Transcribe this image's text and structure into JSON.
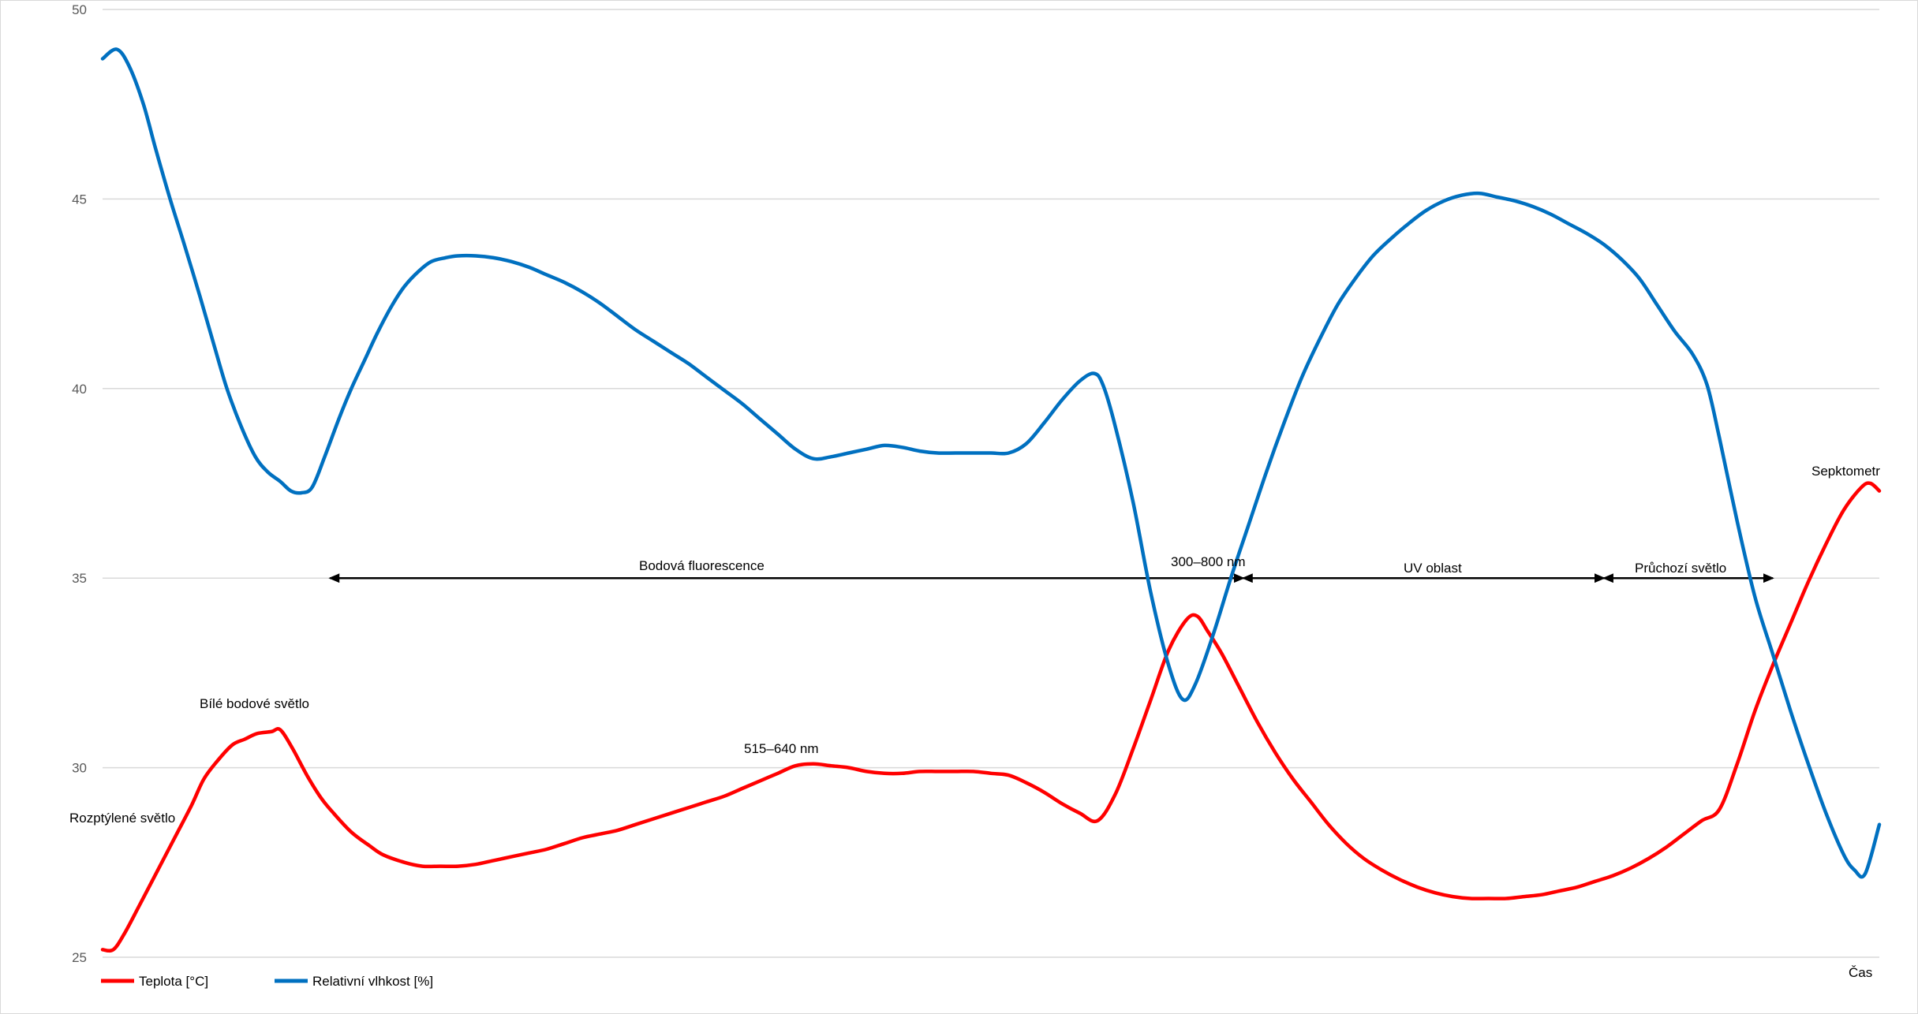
{
  "chart_data": {
    "type": "line",
    "title": "",
    "xlabel": "Čas",
    "ylabel": "",
    "ylim": [
      25,
      50
    ],
    "yticks": [
      "25",
      "30",
      "35",
      "40",
      "45",
      "50"
    ],
    "grid": true,
    "legend_position": "bottom-left",
    "x_range": [
      0,
      100
    ],
    "series": [
      {
        "name": "Teplota [°C]",
        "color": "#ff0000",
        "points": [
          [
            0,
            25.2
          ],
          [
            0.6,
            25.2
          ],
          [
            1.2,
            25.6
          ],
          [
            2,
            26.3
          ],
          [
            3,
            27.2
          ],
          [
            4,
            28.1
          ],
          [
            5,
            29.0
          ],
          [
            5.7,
            29.7
          ],
          [
            6.5,
            30.2
          ],
          [
            7.3,
            30.6
          ],
          [
            8,
            30.75
          ],
          [
            8.7,
            30.9
          ],
          [
            9.5,
            30.95
          ],
          [
            10,
            31.0
          ],
          [
            10.7,
            30.5
          ],
          [
            11.5,
            29.8
          ],
          [
            12.3,
            29.2
          ],
          [
            13,
            28.8
          ],
          [
            14,
            28.3
          ],
          [
            15,
            27.95
          ],
          [
            15.8,
            27.7
          ],
          [
            17,
            27.5
          ],
          [
            18,
            27.4
          ],
          [
            19,
            27.4
          ],
          [
            20,
            27.4
          ],
          [
            21,
            27.45
          ],
          [
            22,
            27.55
          ],
          [
            23,
            27.65
          ],
          [
            24,
            27.75
          ],
          [
            25,
            27.85
          ],
          [
            26,
            28.0
          ],
          [
            27,
            28.15
          ],
          [
            28,
            28.25
          ],
          [
            29,
            28.35
          ],
          [
            30,
            28.5
          ],
          [
            31,
            28.65
          ],
          [
            32,
            28.8
          ],
          [
            33,
            28.95
          ],
          [
            34,
            29.1
          ],
          [
            35,
            29.25
          ],
          [
            36,
            29.45
          ],
          [
            37,
            29.65
          ],
          [
            38,
            29.85
          ],
          [
            39,
            30.05
          ],
          [
            40,
            30.1
          ],
          [
            41,
            30.05
          ],
          [
            42,
            30.0
          ],
          [
            43,
            29.9
          ],
          [
            44,
            29.85
          ],
          [
            45,
            29.85
          ],
          [
            46,
            29.9
          ],
          [
            47,
            29.9
          ],
          [
            48,
            29.9
          ],
          [
            49,
            29.9
          ],
          [
            50,
            29.85
          ],
          [
            51,
            29.8
          ],
          [
            52,
            29.6
          ],
          [
            53,
            29.35
          ],
          [
            54,
            29.05
          ],
          [
            55,
            28.8
          ],
          [
            56,
            28.6
          ],
          [
            57,
            29.3
          ],
          [
            58,
            30.5
          ],
          [
            59,
            31.8
          ],
          [
            60,
            33.1
          ],
          [
            61,
            33.9
          ],
          [
            61.6,
            34.0
          ],
          [
            62.2,
            33.6
          ],
          [
            63,
            33.0
          ],
          [
            64,
            32.1
          ],
          [
            65,
            31.2
          ],
          [
            66,
            30.4
          ],
          [
            67,
            29.7
          ],
          [
            68,
            29.1
          ],
          [
            69,
            28.5
          ],
          [
            70,
            28.0
          ],
          [
            71,
            27.6
          ],
          [
            72,
            27.3
          ],
          [
            73,
            27.05
          ],
          [
            74,
            26.85
          ],
          [
            75,
            26.7
          ],
          [
            76,
            26.6
          ],
          [
            77,
            26.55
          ],
          [
            78,
            26.55
          ],
          [
            79,
            26.55
          ],
          [
            80,
            26.6
          ],
          [
            81,
            26.65
          ],
          [
            82,
            26.75
          ],
          [
            83,
            26.85
          ],
          [
            84,
            27.0
          ],
          [
            85,
            27.15
          ],
          [
            86,
            27.35
          ],
          [
            87,
            27.6
          ],
          [
            88,
            27.9
          ],
          [
            89,
            28.25
          ],
          [
            90,
            28.6
          ],
          [
            91,
            28.9
          ],
          [
            92,
            30.1
          ],
          [
            93,
            31.5
          ],
          [
            94,
            32.7
          ],
          [
            95,
            33.8
          ],
          [
            96,
            34.9
          ],
          [
            97,
            35.9
          ],
          [
            98,
            36.8
          ],
          [
            99,
            37.4
          ],
          [
            99.5,
            37.5
          ],
          [
            100,
            37.3
          ]
        ]
      },
      {
        "name": "Relativní vlhkost [%]",
        "color": "#0070c0",
        "points": [
          [
            0,
            48.7
          ],
          [
            0.8,
            48.95
          ],
          [
            1.5,
            48.5
          ],
          [
            2.3,
            47.5
          ],
          [
            3,
            46.3
          ],
          [
            3.8,
            45.0
          ],
          [
            4.6,
            43.8
          ],
          [
            5.5,
            42.4
          ],
          [
            6.3,
            41.1
          ],
          [
            7,
            40.0
          ],
          [
            7.8,
            39.0
          ],
          [
            8.6,
            38.2
          ],
          [
            9.3,
            37.8
          ],
          [
            10,
            37.55
          ],
          [
            10.6,
            37.3
          ],
          [
            11.2,
            37.25
          ],
          [
            11.8,
            37.4
          ],
          [
            12.5,
            38.2
          ],
          [
            13.3,
            39.2
          ],
          [
            14,
            40.0
          ],
          [
            14.8,
            40.8
          ],
          [
            15.5,
            41.5
          ],
          [
            16.3,
            42.2
          ],
          [
            17,
            42.7
          ],
          [
            17.8,
            43.1
          ],
          [
            18.5,
            43.35
          ],
          [
            19.3,
            43.45
          ],
          [
            20,
            43.5
          ],
          [
            21,
            43.5
          ],
          [
            22,
            43.45
          ],
          [
            23,
            43.35
          ],
          [
            24,
            43.2
          ],
          [
            25,
            43.0
          ],
          [
            26,
            42.8
          ],
          [
            27,
            42.55
          ],
          [
            28,
            42.25
          ],
          [
            29,
            41.9
          ],
          [
            30,
            41.55
          ],
          [
            31,
            41.25
          ],
          [
            32,
            40.95
          ],
          [
            33,
            40.65
          ],
          [
            34,
            40.3
          ],
          [
            35,
            39.95
          ],
          [
            36,
            39.6
          ],
          [
            37,
            39.2
          ],
          [
            38,
            38.8
          ],
          [
            39,
            38.4
          ],
          [
            40,
            38.15
          ],
          [
            41,
            38.2
          ],
          [
            42,
            38.3
          ],
          [
            43,
            38.4
          ],
          [
            44,
            38.5
          ],
          [
            45,
            38.45
          ],
          [
            46,
            38.35
          ],
          [
            47,
            38.3
          ],
          [
            48,
            38.3
          ],
          [
            49,
            38.3
          ],
          [
            50,
            38.3
          ],
          [
            51,
            38.3
          ],
          [
            52,
            38.55
          ],
          [
            53,
            39.1
          ],
          [
            54,
            39.7
          ],
          [
            55,
            40.2
          ],
          [
            55.8,
            40.4
          ],
          [
            56.3,
            40.1
          ],
          [
            57,
            39.0
          ],
          [
            58,
            37.0
          ],
          [
            59,
            34.6
          ],
          [
            60,
            32.7
          ],
          [
            60.8,
            31.8
          ],
          [
            61.5,
            32.2
          ],
          [
            62.5,
            33.5
          ],
          [
            63.5,
            35.0
          ],
          [
            64.5,
            36.4
          ],
          [
            65.5,
            37.8
          ],
          [
            66.5,
            39.1
          ],
          [
            67.5,
            40.3
          ],
          [
            68.5,
            41.3
          ],
          [
            69.5,
            42.2
          ],
          [
            70.5,
            42.9
          ],
          [
            71.5,
            43.5
          ],
          [
            72.5,
            43.95
          ],
          [
            73.5,
            44.35
          ],
          [
            74.5,
            44.7
          ],
          [
            75.5,
            44.95
          ],
          [
            76.5,
            45.1
          ],
          [
            77.5,
            45.15
          ],
          [
            78.5,
            45.05
          ],
          [
            79.5,
            44.95
          ],
          [
            80.5,
            44.8
          ],
          [
            81.5,
            44.6
          ],
          [
            82.5,
            44.35
          ],
          [
            83.5,
            44.1
          ],
          [
            84.5,
            43.8
          ],
          [
            85.5,
            43.4
          ],
          [
            86.5,
            42.9
          ],
          [
            87.5,
            42.2
          ],
          [
            88.5,
            41.5
          ],
          [
            89.5,
            40.9
          ],
          [
            90.3,
            40.1
          ],
          [
            91,
            38.7
          ],
          [
            92,
            36.5
          ],
          [
            93,
            34.5
          ],
          [
            94,
            33.0
          ],
          [
            95,
            31.5
          ],
          [
            96,
            30.1
          ],
          [
            97,
            28.8
          ],
          [
            98,
            27.7
          ],
          [
            98.6,
            27.3
          ],
          [
            99.2,
            27.2
          ],
          [
            100,
            28.5
          ]
        ]
      }
    ],
    "annotations": [
      {
        "id": "rozptylene",
        "text": "Rozptýlené světlo"
      },
      {
        "id": "bile",
        "text": "Bílé bodové světlo"
      },
      {
        "id": "nm515",
        "text": "515–640 nm"
      },
      {
        "id": "bodova",
        "text": "Bodová fluorescence"
      },
      {
        "id": "nm300",
        "text": "300–800 nm"
      },
      {
        "id": "uv",
        "text": "UV oblast"
      },
      {
        "id": "pruchozi",
        "text": "Průchozí světlo"
      },
      {
        "id": "sepktometr",
        "text": "Sepktometr"
      }
    ],
    "range_arrows": [
      {
        "id": "arrow-bodova",
        "from": 12.8,
        "to": 64.2,
        "y": 35.0
      },
      {
        "id": "arrow-uv",
        "from": 64.2,
        "to": 84.5,
        "y": 35.0
      },
      {
        "id": "arrow-pruchozi",
        "from": 84.5,
        "to": 94.0,
        "y": 35.0
      }
    ]
  }
}
